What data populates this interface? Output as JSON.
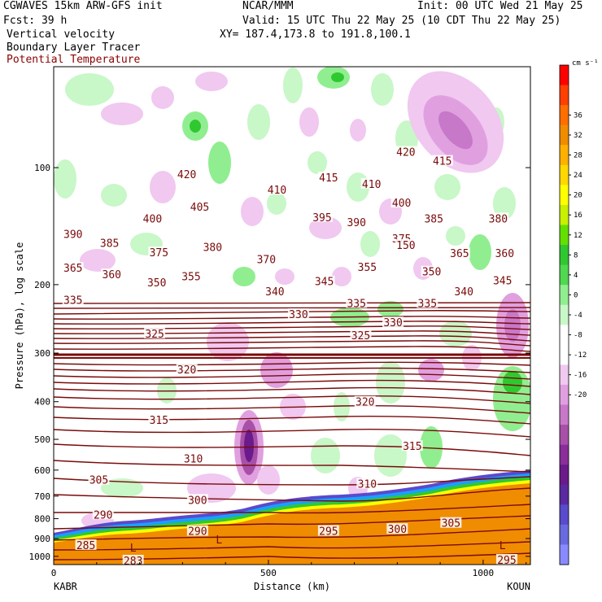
{
  "header": {
    "model": "CGWAVES 15km ARW-GFS init",
    "org": "NCAR/MMM",
    "init": "Init: 00 UTC Wed 21 May 25",
    "fcst": "Fcst:   39 h",
    "valid": "Valid: 15 UTC Thu 22 May 25 (10 CDT Thu 22 May 25)",
    "field1": "Vertical velocity",
    "xy": "XY= 187.4,173.8 to 191.8,100.1",
    "field2": "Boundary Layer Tracer",
    "field3": "Potential Temperature"
  },
  "axes": {
    "ylabel": "Pressure (hPa), log scale",
    "xlabel": "Distance (km)",
    "left_station": "KABR",
    "right_station": "KOUN"
  },
  "colors": {
    "theta_contour": "#7a0a0a",
    "terrain": "#f08c00",
    "header_red": "#8b0000"
  },
  "chart_data": {
    "type": "heatmap",
    "x_range_km": [
      0,
      1110
    ],
    "x_ticks": [
      0,
      500,
      1000
    ],
    "x_tick_labels": [
      "0",
      "500",
      "1000"
    ],
    "y_scale": "log",
    "y_range_hpa": [
      1050,
      55
    ],
    "y_ticks": [
      1000,
      900,
      800,
      700,
      600,
      500,
      400,
      300,
      200,
      100
    ],
    "y_tick_labels": [
      "1000",
      "900",
      "800",
      "700",
      "600",
      "500",
      "400",
      "300",
      "200",
      "100"
    ],
    "colorbar": {
      "units": "cm s⁻¹",
      "ticks": [
        36,
        32,
        28,
        24,
        20,
        16,
        12,
        8,
        4,
        0,
        -4,
        -8,
        -12,
        -16,
        -20
      ],
      "tick_labels": [
        "36",
        "32",
        "28",
        "24",
        "20",
        "16",
        "12",
        "8",
        "4",
        "0",
        "-4",
        "-8",
        "-12",
        "-16",
        "-20"
      ],
      "colors": [
        "#ff0000",
        "#ff4000",
        "#ff6e00",
        "#f08c00",
        "#ffb000",
        "#ffd800",
        "#ffff00",
        "#c8f000",
        "#64e000",
        "#30c830",
        "#50d850",
        "#90ee90",
        "#c8f7c8",
        "#ffffff",
        "#ffffff",
        "#f0c8f0",
        "#e0a0e0",
        "#c878c8",
        "#a850a8",
        "#8a2e9a",
        "#6a1a8a",
        "#5a2aa0",
        "#5a4acc",
        "#6a6ae0",
        "#8a8aff"
      ]
    },
    "theta_labels": [
      {
        "text": "420",
        "x_km": 310,
        "p": 104
      },
      {
        "text": "410",
        "x_km": 520,
        "p": 114
      },
      {
        "text": "415",
        "x_km": 640,
        "p": 106
      },
      {
        "text": "410",
        "x_km": 740,
        "p": 110
      },
      {
        "text": "420",
        "x_km": 820,
        "p": 91
      },
      {
        "text": "415",
        "x_km": 905,
        "p": 96
      },
      {
        "text": "405",
        "x_km": 340,
        "p": 126
      },
      {
        "text": "400",
        "x_km": 230,
        "p": 135
      },
      {
        "text": "395",
        "x_km": 625,
        "p": 134
      },
      {
        "text": "390",
        "x_km": 705,
        "p": 138
      },
      {
        "text": "400",
        "x_km": 810,
        "p": 123
      },
      {
        "text": "385",
        "x_km": 885,
        "p": 135
      },
      {
        "text": "380",
        "x_km": 1035,
        "p": 135
      },
      {
        "text": "390",
        "x_km": 45,
        "p": 148
      },
      {
        "text": "385",
        "x_km": 130,
        "p": 156
      },
      {
        "text": "375",
        "x_km": 245,
        "p": 165
      },
      {
        "text": "380",
        "x_km": 370,
        "p": 160
      },
      {
        "text": "370",
        "x_km": 495,
        "p": 172
      },
      {
        "text": "375",
        "x_km": 810,
        "p": 152
      },
      {
        "text": "365",
        "x_km": 945,
        "p": 166
      },
      {
        "text": "360",
        "x_km": 1050,
        "p": 166
      },
      {
        "text": "365",
        "x_km": 45,
        "p": 181
      },
      {
        "text": "360",
        "x_km": 135,
        "p": 188
      },
      {
        "text": "355",
        "x_km": 320,
        "p": 190
      },
      {
        "text": "350",
        "x_km": 240,
        "p": 197
      },
      {
        "text": "355",
        "x_km": 730,
        "p": 180
      },
      {
        "text": "350",
        "x_km": 880,
        "p": 185
      },
      {
        "text": "345",
        "x_km": 630,
        "p": 196
      },
      {
        "text": "345",
        "x_km": 1045,
        "p": 195
      },
      {
        "text": "340",
        "x_km": 515,
        "p": 208
      },
      {
        "text": "340",
        "x_km": 955,
        "p": 208
      },
      {
        "text": "335",
        "x_km": 45,
        "p": 219
      },
      {
        "text": "335",
        "x_km": 705,
        "p": 223
      },
      {
        "text": "335",
        "x_km": 870,
        "p": 223
      },
      {
        "text": "330",
        "x_km": 570,
        "p": 238
      },
      {
        "text": "330",
        "x_km": 790,
        "p": 250
      },
      {
        "text": "325",
        "x_km": 235,
        "p": 267
      },
      {
        "text": "325",
        "x_km": 715,
        "p": 270
      },
      {
        "text": "320",
        "x_km": 310,
        "p": 330
      },
      {
        "text": "320",
        "x_km": 725,
        "p": 400
      },
      {
        "text": "315",
        "x_km": 245,
        "p": 445
      },
      {
        "text": "315",
        "x_km": 835,
        "p": 520
      },
      {
        "text": "310",
        "x_km": 325,
        "p": 560
      },
      {
        "text": "310",
        "x_km": 730,
        "p": 650
      },
      {
        "text": "305",
        "x_km": 105,
        "p": 635
      },
      {
        "text": "300",
        "x_km": 335,
        "p": 715
      },
      {
        "text": "300",
        "x_km": 800,
        "p": 850
      },
      {
        "text": "305",
        "x_km": 925,
        "p": 820
      },
      {
        "text": "295",
        "x_km": 640,
        "p": 860
      },
      {
        "text": "295",
        "x_km": 1055,
        "p": 1020
      },
      {
        "text": "290",
        "x_km": 115,
        "p": 780
      },
      {
        "text": "290",
        "x_km": 335,
        "p": 860
      },
      {
        "text": "285",
        "x_km": 75,
        "p": 935
      },
      {
        "text": "283",
        "x_km": 185,
        "p": 1025
      },
      {
        "text": "150",
        "x_km": 820,
        "p": 158
      }
    ],
    "markers": [
      {
        "text": "L",
        "x_km": 185,
        "p": 950
      },
      {
        "text": "L",
        "x_km": 385,
        "p": 905
      },
      {
        "text": "L",
        "x_km": 1045,
        "p": 935
      }
    ]
  }
}
